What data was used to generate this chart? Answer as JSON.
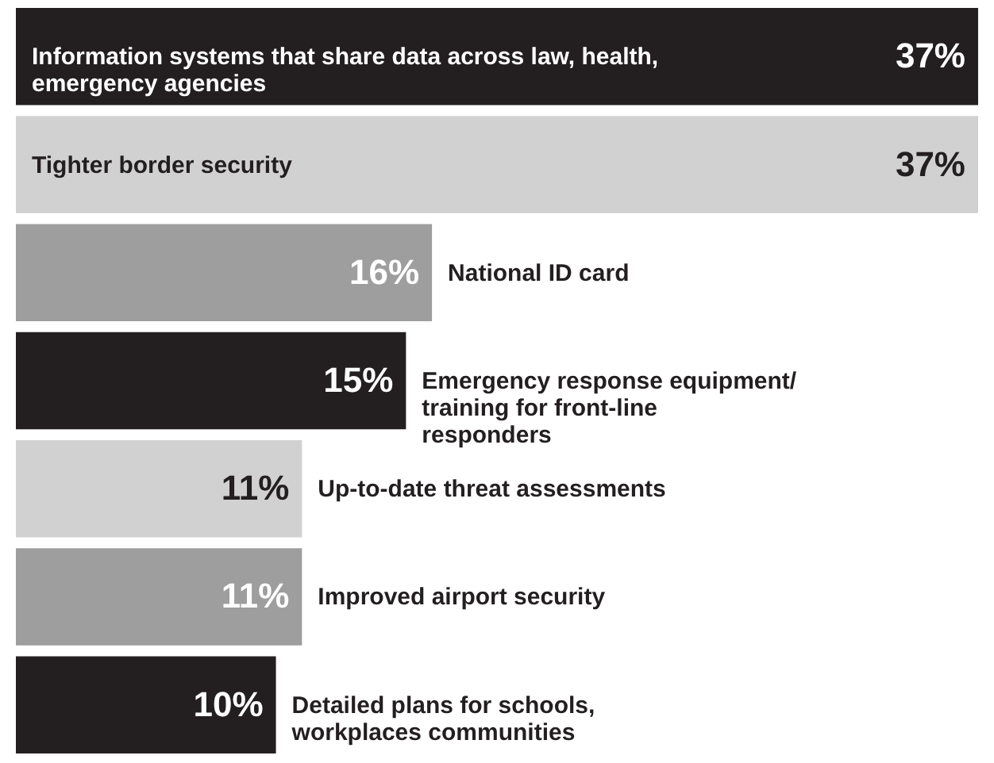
{
  "chart_data": {
    "type": "bar",
    "orientation": "horizontal",
    "categories": [
      "Information systems that share data across law, health, emergency agencies",
      "Tighter border security",
      "National ID card",
      "Emergency response equipment/ training for front-line responders",
      "Up-to-date threat assessments",
      "Improved airport security",
      "Detailed plans for schools, workplaces communities"
    ],
    "values": [
      37,
      37,
      16,
      15,
      11,
      11,
      10
    ],
    "colors": [
      "#231f20",
      "#d1d1d1",
      "#9e9e9e",
      "#231f20",
      "#d1d1d1",
      "#9e9e9e",
      "#231f20"
    ],
    "value_labels": [
      "37%",
      "37%",
      "16%",
      "15%",
      "11%",
      "11%",
      "10%"
    ]
  }
}
